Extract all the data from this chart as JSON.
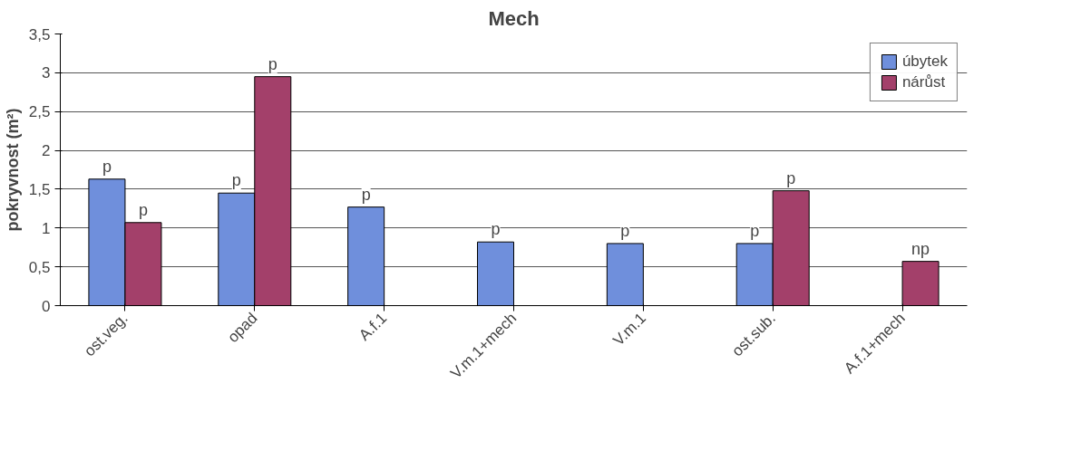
{
  "chart_data": {
    "type": "bar",
    "title": "Mech",
    "ylabel": "pokryvnost (m²)",
    "categories": [
      "ost.veg.",
      "opad",
      "A.f.1",
      "V.m.1+mech",
      "V.m.1",
      "ost.sub.",
      "A.f.1+mech"
    ],
    "series": [
      {
        "name": "úbytek",
        "color": "#6f8fdc",
        "values": [
          1.63,
          1.45,
          1.27,
          0.82,
          0.8,
          0.8,
          null
        ],
        "value_labels": [
          "p",
          "p",
          "p",
          "p",
          "p",
          "p",
          null
        ]
      },
      {
        "name": "nárůst",
        "color": "#a3406a",
        "values": [
          1.07,
          2.95,
          null,
          null,
          null,
          1.48,
          0.57
        ],
        "value_labels": [
          "p",
          "p",
          null,
          null,
          null,
          "p",
          "np"
        ]
      }
    ],
    "ylim": [
      0,
      3.5
    ],
    "yticks": [
      0,
      {
        "value": 0.5,
        "label": "0,5"
      },
      1,
      {
        "value": 1.5,
        "label": "1,5"
      },
      2,
      {
        "value": 2.5,
        "label": "2,5"
      },
      3,
      {
        "value": 3.5,
        "label": "3,5"
      }
    ],
    "grid": "y",
    "legend": "top right"
  }
}
